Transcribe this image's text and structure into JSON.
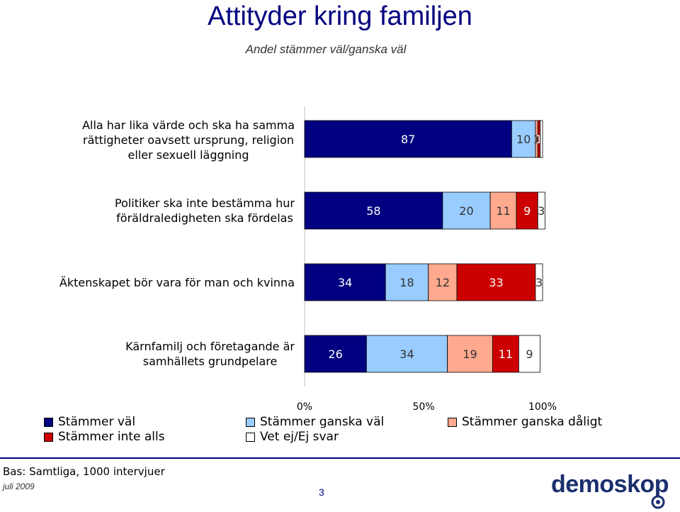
{
  "title": "Attityder kring familjen",
  "subtitle": "Andel stämmer väl/ganska väl",
  "chart_data": {
    "type": "bar",
    "orientation": "horizontal",
    "stacked": true,
    "percent_stacked": true,
    "categories": [
      [
        "Alla har lika värde och ska ha samma",
        "rättigheter oavsett ursprung, religion",
        "eller sexuell läggning"
      ],
      [
        "Politiker ska inte bestämma hur",
        "föräldraledigheten ska fördelas"
      ],
      [
        "Äktenskapet bör vara för man och kvinna"
      ],
      [
        "Kärnfamilj och företagande är",
        "samhällets grundpelare"
      ]
    ],
    "series": [
      {
        "name": "Stämmer väl",
        "color": "#000080",
        "label_color": "#ffffff",
        "values": [
          87,
          58,
          34,
          26
        ]
      },
      {
        "name": "Stämmer ganska väl",
        "color": "#99ccff",
        "label_color": "#333333",
        "values": [
          10,
          20,
          18,
          34
        ]
      },
      {
        "name": "Stämmer ganska dåligt",
        "color": "#ffa98f",
        "label_color": "#333333",
        "values": [
          1,
          11,
          12,
          19
        ]
      },
      {
        "name": "Stämmer inte alls",
        "color": "#cc0000",
        "label_color": "#ffffff",
        "values": [
          1,
          9,
          33,
          11
        ]
      },
      {
        "name": "Vet ej/Ej svar",
        "color": "#ffffff",
        "label_color": "#333333",
        "values": [
          1,
          3,
          3,
          9
        ]
      }
    ],
    "data_labels": [
      [
        "87",
        "10",
        "1",
        "1",
        ""
      ],
      [
        "58",
        "20",
        "11",
        "9",
        "3"
      ],
      [
        "34",
        "18",
        "12",
        "33",
        "3"
      ],
      [
        "26",
        "34",
        "19",
        "11",
        "9"
      ]
    ],
    "x_ticks": [
      "0%",
      "50%",
      "100%"
    ],
    "xlim": [
      0,
      100
    ],
    "legend_position": "bottom",
    "grid": false
  },
  "footnote": "Bas: Samtliga, 1000 intervjuer",
  "date": "juli 2009",
  "page_number": "3",
  "logo_text": "demoskop"
}
